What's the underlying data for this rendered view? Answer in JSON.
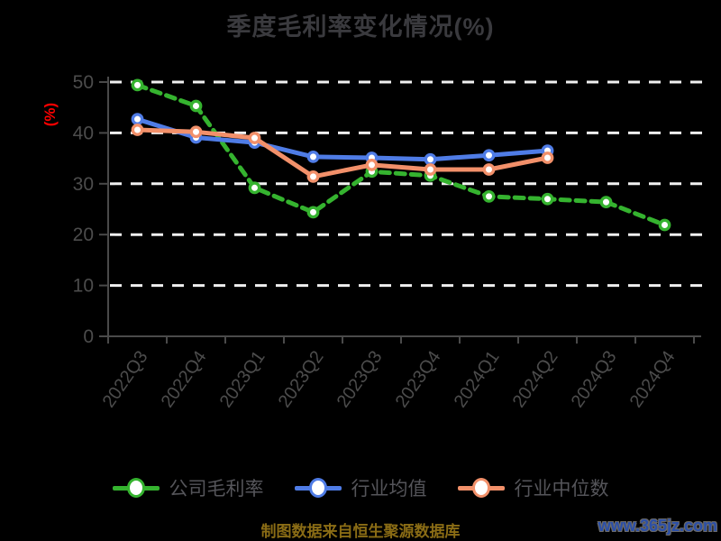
{
  "page": {
    "background": "#000000"
  },
  "header": {
    "title": "季度毛利率变化情况(%)",
    "title_color": "#3a3a3e"
  },
  "chart_data": {
    "type": "line",
    "title": "季度毛利率变化情况(%)",
    "xlabel": "",
    "ylabel": "(%)",
    "ylabel_color": "#ff0000",
    "ylim": [
      0,
      50
    ],
    "ytick_interval": 10,
    "ytick_labels": [
      "0",
      "10",
      "20",
      "30",
      "40",
      "50"
    ],
    "grid": "horizontal white dashed lines",
    "legend_position": "bottom",
    "background": "#000000",
    "axis_color": "#4a4a4a",
    "tick_label_color": "#4c4c4c",
    "gridline_color": "#f0f0f0",
    "categories": [
      "2022Q3",
      "2022Q4",
      "2023Q1",
      "2023Q2",
      "2023Q3",
      "2023Q4",
      "2024Q1",
      "2024Q2",
      "2024Q3",
      "2024Q4"
    ],
    "series": [
      {
        "name": "公司毛利率",
        "color": "#35b32f",
        "line_style": "dashed",
        "marker": "circle-white-fill",
        "values": [
          49.4,
          45.3,
          29.2,
          24.4,
          32.4,
          31.6,
          27.5,
          27.0,
          26.4,
          21.9
        ]
      },
      {
        "name": "行业均值",
        "color": "#4f7ce6",
        "line_style": "solid",
        "marker": "circle-white-fill",
        "values": [
          42.7,
          39.1,
          38.1,
          35.3,
          35.1,
          34.8,
          35.6,
          36.5,
          null,
          null
        ]
      },
      {
        "name": "行业中位数",
        "color": "#f2906a",
        "line_style": "solid",
        "marker": "circle-white-fill",
        "values": [
          40.6,
          40.2,
          39.0,
          31.4,
          33.7,
          32.8,
          32.8,
          35.1,
          null,
          null
        ]
      }
    ]
  },
  "footer": {
    "source_note": "制图数据来自恒生聚源数据库",
    "source_color": "#8a6c15",
    "watermark": "www.365jz.com",
    "watermark_color": "#2b4fa8"
  }
}
